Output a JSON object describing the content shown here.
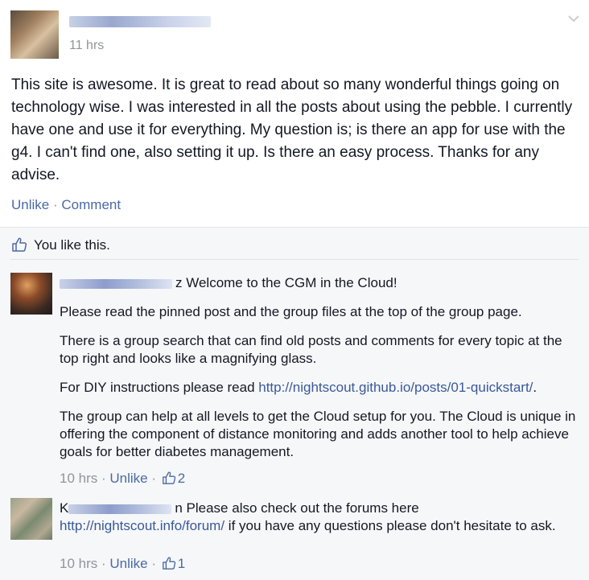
{
  "post": {
    "time": "11 hrs",
    "body": "This site is awesome. It is great to read about so many wonderful things going on technology wise. I was interested in all the posts about using the pebble. I currently have one and use it for everything. My question is; is there an app for use with the g4. I can't find one, also setting it up. Is there an easy process. Thanks for any advise.",
    "actions": {
      "unlike": "Unlike",
      "separator": "·",
      "comment": "Comment"
    }
  },
  "likes": {
    "text": "You like this."
  },
  "comments": [
    {
      "name_suffix": "z",
      "first_line": " Welcome to the CGM in the Cloud!",
      "p1": "Please read the pinned post and the group files at the top of the group page.",
      "p2": "There is a group search that can find old posts and comments for every topic at the top right and looks like a magnifying glass.",
      "p3_prefix": "For DIY instructions please read ",
      "p3_link": "http://nightscout.github.io/posts/01-quickstart/",
      "p3_suffix": ".",
      "p4": "The group can help at all levels to get the Cloud setup for you. The Cloud is unique in offering the component of distance monitoring and adds another tool to help achieve goals for better diabetes management.",
      "time": "10 hrs",
      "separator": "·",
      "unlike": "Unlike",
      "likes": "2"
    },
    {
      "name_prefix": "K",
      "name_suffix": "n",
      "first_line": " Please also check out the forums here",
      "link": "http://nightscout.info/forum/",
      "rest": " if you have any questions please don't hesitate to ask.",
      "time": "10 hrs",
      "separator": "·",
      "unlike": "Unlike",
      "likes": "1"
    }
  ],
  "colors": {
    "link": "#3b5998",
    "meta": "#90949c",
    "background": "#f6f7f9"
  },
  "icons": {
    "like": "thumbs-up-icon",
    "menu": "chevron-down-icon"
  }
}
